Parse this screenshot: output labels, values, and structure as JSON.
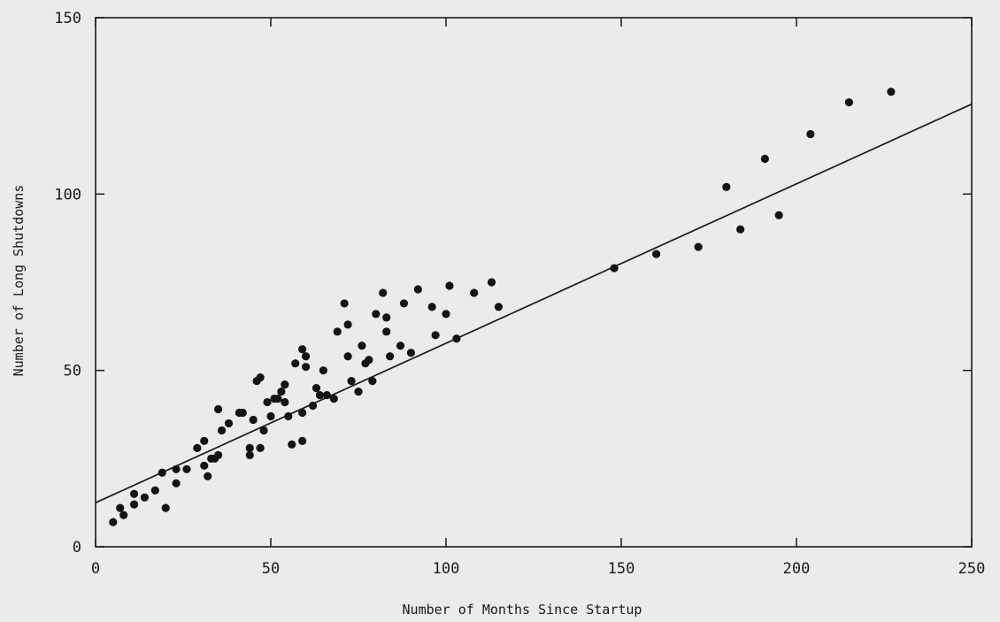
{
  "chart_data": {
    "type": "scatter",
    "title": "",
    "xlabel": "Number of Months Since Startup",
    "ylabel": "Number of Long Shutdowns",
    "xlim": [
      0,
      250
    ],
    "ylim": [
      0,
      150
    ],
    "x_ticks": [
      0,
      50,
      100,
      150,
      200,
      250
    ],
    "y_ticks": [
      0,
      50,
      100,
      150
    ],
    "x_tick_labels": [
      "0",
      "50",
      "100",
      "150",
      "200",
      "250"
    ],
    "y_tick_labels": [
      "0",
      "50",
      "100",
      "150"
    ],
    "grid": false,
    "legend": "none",
    "fit_line": {
      "x": [
        0,
        250
      ],
      "y": [
        12.5,
        125.5
      ]
    },
    "points": [
      [
        5,
        7
      ],
      [
        7,
        11
      ],
      [
        8,
        9
      ],
      [
        11,
        12
      ],
      [
        11,
        15
      ],
      [
        14,
        14
      ],
      [
        17,
        16
      ],
      [
        19,
        21
      ],
      [
        20,
        11
      ],
      [
        23,
        18
      ],
      [
        23,
        22
      ],
      [
        26,
        22
      ],
      [
        29,
        28
      ],
      [
        31,
        30
      ],
      [
        31,
        23
      ],
      [
        32,
        20
      ],
      [
        33,
        25
      ],
      [
        34,
        25
      ],
      [
        35,
        26
      ],
      [
        35,
        39
      ],
      [
        36,
        33
      ],
      [
        38,
        35
      ],
      [
        41,
        38
      ],
      [
        42,
        38
      ],
      [
        44,
        28
      ],
      [
        44,
        26
      ],
      [
        45,
        36
      ],
      [
        46,
        47
      ],
      [
        47,
        48
      ],
      [
        47,
        28
      ],
      [
        48,
        33
      ],
      [
        49,
        41
      ],
      [
        50,
        37
      ],
      [
        51,
        42
      ],
      [
        52,
        42
      ],
      [
        53,
        44
      ],
      [
        54,
        41
      ],
      [
        54,
        46
      ],
      [
        55,
        37
      ],
      [
        56,
        29
      ],
      [
        57,
        52
      ],
      [
        59,
        38
      ],
      [
        59,
        56
      ],
      [
        59,
        30
      ],
      [
        60,
        54
      ],
      [
        60,
        51
      ],
      [
        62,
        40
      ],
      [
        63,
        45
      ],
      [
        64,
        43
      ],
      [
        65,
        50
      ],
      [
        66,
        43
      ],
      [
        68,
        42
      ],
      [
        69,
        61
      ],
      [
        71,
        69
      ],
      [
        72,
        63
      ],
      [
        72,
        54
      ],
      [
        73,
        47
      ],
      [
        75,
        44
      ],
      [
        76,
        57
      ],
      [
        77,
        52
      ],
      [
        78,
        53
      ],
      [
        79,
        47
      ],
      [
        80,
        66
      ],
      [
        82,
        72
      ],
      [
        83,
        65
      ],
      [
        83,
        61
      ],
      [
        84,
        54
      ],
      [
        87,
        57
      ],
      [
        88,
        69
      ],
      [
        90,
        55
      ],
      [
        92,
        73
      ],
      [
        96,
        68
      ],
      [
        97,
        60
      ],
      [
        100,
        66
      ],
      [
        101,
        74
      ],
      [
        103,
        59
      ],
      [
        108,
        72
      ],
      [
        113,
        75
      ],
      [
        115,
        68
      ],
      [
        148,
        79
      ],
      [
        160,
        83
      ],
      [
        172,
        85
      ],
      [
        180,
        102
      ],
      [
        184,
        90
      ],
      [
        191,
        110
      ],
      [
        195,
        94
      ],
      [
        204,
        117
      ],
      [
        215,
        126
      ],
      [
        227,
        129
      ]
    ]
  }
}
